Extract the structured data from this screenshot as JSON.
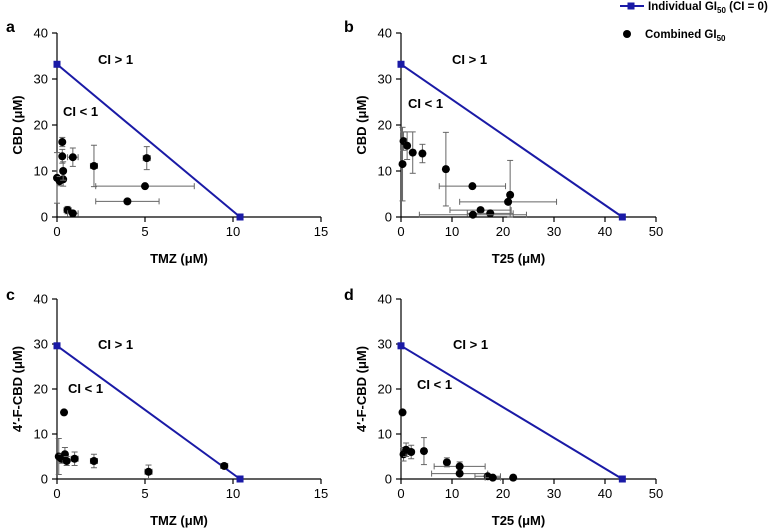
{
  "legend": {
    "individual": {
      "label": "Individual GI",
      "sub": "50",
      "suffix": " (CI = 0)",
      "color": "#1a1aa6",
      "marker": "square"
    },
    "combined": {
      "label": "Combined GI",
      "sub": "50",
      "suffix": "",
      "color": "#000000",
      "marker": "circle"
    }
  },
  "chart_data": [
    {
      "type": "scatter",
      "panel": "a",
      "xlabel": "TMZ (μM)",
      "ylabel": "CBD (μM)",
      "xlim": [
        0,
        15
      ],
      "ylim": [
        0,
        40
      ],
      "xticks": [
        0,
        5,
        10,
        15
      ],
      "yticks": [
        0,
        10,
        20,
        30,
        40
      ],
      "annotations": [
        "CI > 1",
        "CI < 1"
      ],
      "individual_line": [
        [
          0,
          33.2
        ],
        [
          10.4,
          0
        ]
      ],
      "combined_points": [
        {
          "x": 0.0,
          "y": 8.5,
          "xerr": 0.0,
          "yerr": 5.5
        },
        {
          "x": 0.15,
          "y": 7.8,
          "xerr": 0.1,
          "yerr": 1.0
        },
        {
          "x": 0.35,
          "y": 8.2,
          "xerr": 0.1,
          "yerr": 1.5
        },
        {
          "x": 0.3,
          "y": 13.2,
          "xerr": 0.1,
          "yerr": 1.5
        },
        {
          "x": 0.3,
          "y": 16.3,
          "xerr": 0.1,
          "yerr": 1.0
        },
        {
          "x": 0.35,
          "y": 10.0,
          "xerr": 0.1,
          "yerr": 2.0
        },
        {
          "x": 0.6,
          "y": 1.5,
          "xerr": 0.2,
          "yerr": 0.8
        },
        {
          "x": 0.9,
          "y": 0.8,
          "xerr": 0.3,
          "yerr": 0.5
        },
        {
          "x": 0.9,
          "y": 13.0,
          "xerr": 0.3,
          "yerr": 2.0
        },
        {
          "x": 2.1,
          "y": 11.1,
          "xerr": 0.2,
          "yerr": 4.5
        },
        {
          "x": 5.1,
          "y": 12.8,
          "xerr": 0.2,
          "yerr": 2.5
        },
        {
          "x": 5.0,
          "y": 6.7,
          "xerr": 2.8,
          "yerr": 0.0
        },
        {
          "x": 4.0,
          "y": 3.4,
          "xerr": 1.8,
          "yerr": 0.0
        }
      ]
    },
    {
      "type": "scatter",
      "panel": "b",
      "xlabel": "T25 (μM)",
      "ylabel": "CBD (μM)",
      "xlim": [
        0,
        50
      ],
      "ylim": [
        0,
        40
      ],
      "xticks": [
        0,
        10,
        20,
        30,
        40,
        50
      ],
      "yticks": [
        0,
        10,
        20,
        30,
        40
      ],
      "annotations": [
        "CI > 1",
        "CI < 1"
      ],
      "individual_line": [
        [
          0,
          33.2
        ],
        [
          43.4,
          0
        ]
      ],
      "combined_points": [
        {
          "x": 0.3,
          "y": 11.5,
          "xerr": 0.3,
          "yerr": 8.0
        },
        {
          "x": 0.5,
          "y": 16.5,
          "xerr": 0.3,
          "yerr": 2.0
        },
        {
          "x": 1.2,
          "y": 15.5,
          "xerr": 0.5,
          "yerr": 3.0
        },
        {
          "x": 2.3,
          "y": 14.0,
          "xerr": 0.5,
          "yerr": 4.5
        },
        {
          "x": 4.2,
          "y": 13.8,
          "xerr": 0.5,
          "yerr": 2.0
        },
        {
          "x": 8.8,
          "y": 10.4,
          "xerr": 0.5,
          "yerr": 8.0
        },
        {
          "x": 14.0,
          "y": 6.7,
          "xerr": 6.5,
          "yerr": 0.0
        },
        {
          "x": 21.4,
          "y": 4.8,
          "xerr": 0.5,
          "yerr": 7.5
        },
        {
          "x": 21.0,
          "y": 3.3,
          "xerr": 9.5,
          "yerr": 0.0
        },
        {
          "x": 15.6,
          "y": 1.5,
          "xerr": 6.0,
          "yerr": 0.0
        },
        {
          "x": 17.5,
          "y": 0.8,
          "xerr": 4.5,
          "yerr": 0.0
        },
        {
          "x": 14.1,
          "y": 0.5,
          "xerr": 10.5,
          "yerr": 0.0
        }
      ]
    },
    {
      "type": "scatter",
      "panel": "c",
      "xlabel": "TMZ (μM)",
      "ylabel": "4′-F-CBD (μM)",
      "xlim": [
        0,
        15
      ],
      "ylim": [
        0,
        40
      ],
      "xticks": [
        0,
        5,
        10,
        15
      ],
      "yticks": [
        0,
        10,
        20,
        30,
        40
      ],
      "annotations": [
        "CI > 1",
        "CI < 1"
      ],
      "individual_line": [
        [
          0,
          29.6
        ],
        [
          10.4,
          0
        ]
      ],
      "combined_points": [
        {
          "x": 0.1,
          "y": 5.0,
          "xerr": 0.1,
          "yerr": 4.0
        },
        {
          "x": 0.25,
          "y": 4.5,
          "xerr": 0.1,
          "yerr": 1.0
        },
        {
          "x": 0.4,
          "y": 14.8,
          "xerr": 0.1,
          "yerr": 0.0
        },
        {
          "x": 0.45,
          "y": 5.5,
          "xerr": 0.1,
          "yerr": 1.5
        },
        {
          "x": 0.55,
          "y": 4.0,
          "xerr": 0.1,
          "yerr": 1.0
        },
        {
          "x": 1.0,
          "y": 4.5,
          "xerr": 0.2,
          "yerr": 1.5
        },
        {
          "x": 2.1,
          "y": 4.0,
          "xerr": 0.2,
          "yerr": 1.5
        },
        {
          "x": 5.2,
          "y": 1.6,
          "xerr": 0.2,
          "yerr": 1.5
        },
        {
          "x": 9.5,
          "y": 2.9,
          "xerr": 0.2,
          "yerr": 0.5
        }
      ]
    },
    {
      "type": "scatter",
      "panel": "d",
      "xlabel": "T25 (μM)",
      "ylabel": "4′-F-CBD (μM)",
      "xlim": [
        0,
        50
      ],
      "ylim": [
        0,
        40
      ],
      "xticks": [
        0,
        10,
        20,
        30,
        40,
        50
      ],
      "yticks": [
        0,
        10,
        20,
        30,
        40
      ],
      "annotations": [
        "CI > 1",
        "CI < 1"
      ],
      "individual_line": [
        [
          0,
          29.6
        ],
        [
          43.4,
          0
        ]
      ],
      "combined_points": [
        {
          "x": 0.3,
          "y": 14.8,
          "xerr": 0.2,
          "yerr": 0.0
        },
        {
          "x": 0.5,
          "y": 5.5,
          "xerr": 0.3,
          "yerr": 1.5
        },
        {
          "x": 1.0,
          "y": 6.5,
          "xerr": 0.5,
          "yerr": 1.5
        },
        {
          "x": 2.0,
          "y": 6.0,
          "xerr": 0.5,
          "yerr": 1.5
        },
        {
          "x": 4.5,
          "y": 6.2,
          "xerr": 0.5,
          "yerr": 3.0
        },
        {
          "x": 9.0,
          "y": 3.7,
          "xerr": 0.5,
          "yerr": 1.0
        },
        {
          "x": 11.5,
          "y": 2.8,
          "xerr": 5.0,
          "yerr": 1.0
        },
        {
          "x": 11.5,
          "y": 1.2,
          "xerr": 5.5,
          "yerr": 0.0
        },
        {
          "x": 17.0,
          "y": 0.6,
          "xerr": 2.5,
          "yerr": 0.0
        },
        {
          "x": 18.0,
          "y": 0.3,
          "xerr": 1.5,
          "yerr": 0.0
        },
        {
          "x": 22.0,
          "y": 0.3,
          "xerr": 0.5,
          "yerr": 0.0
        }
      ]
    }
  ]
}
